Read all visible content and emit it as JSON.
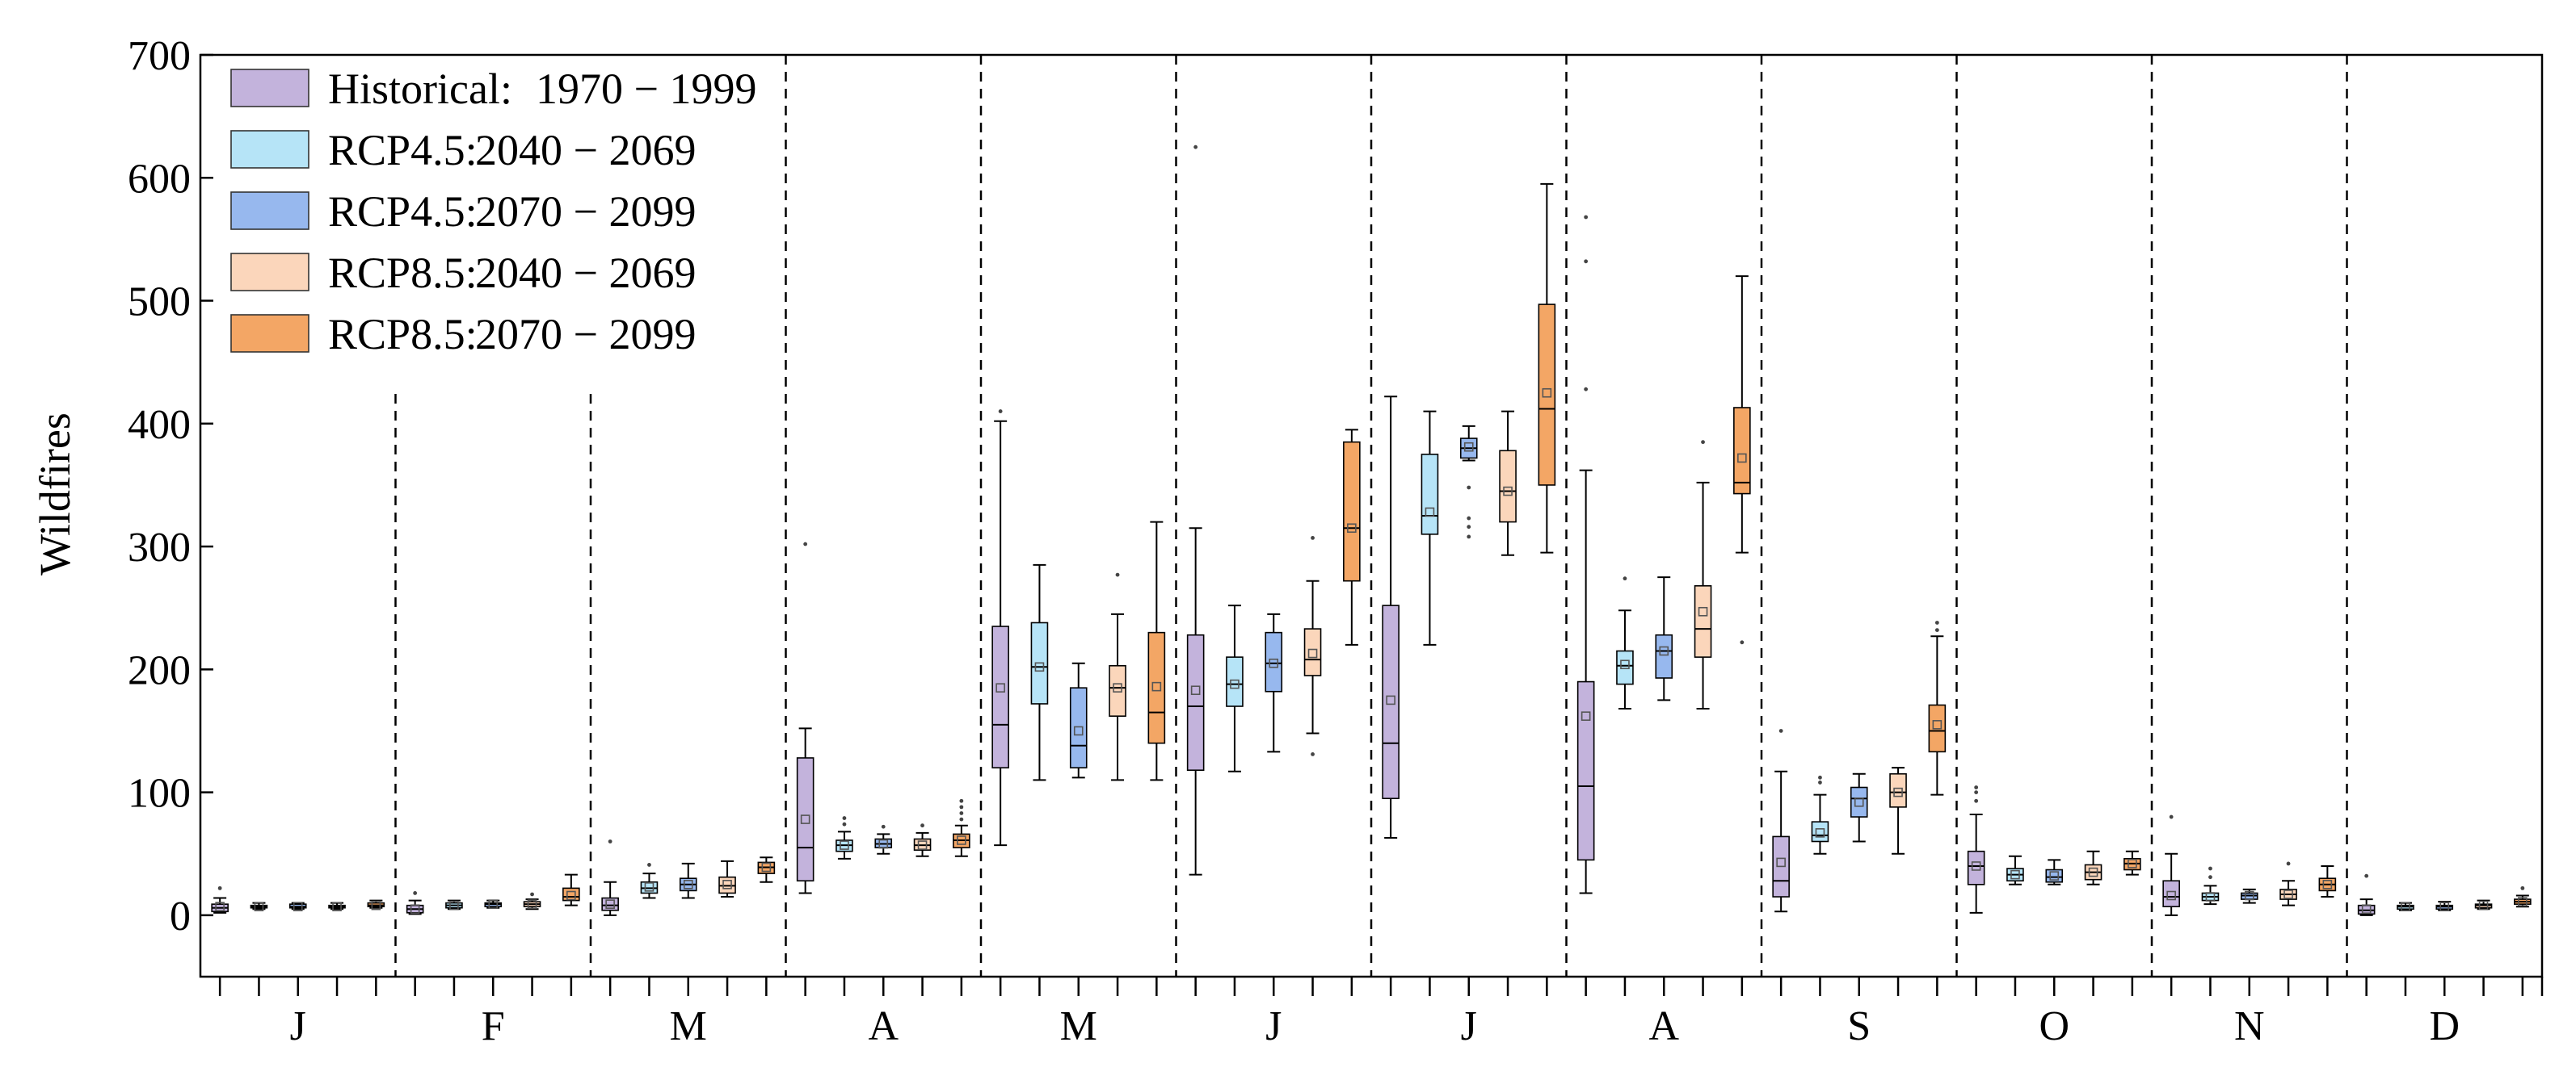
{
  "chart_data": {
    "type": "box",
    "title": "",
    "xlabel": "",
    "ylabel": "Wildfires",
    "ylim": [
      -50,
      700
    ],
    "yticks": [
      0,
      100,
      200,
      300,
      400,
      500,
      600,
      700
    ],
    "grid": false,
    "legend_placement": "top-left",
    "categories": [
      "J",
      "F",
      "M",
      "A",
      "M",
      "J",
      "J",
      "A",
      "S",
      "O",
      "N",
      "D"
    ],
    "series": [
      {
        "name": "Historical:",
        "period": "1970 − 1999",
        "color": "#c3b3dc"
      },
      {
        "name": "RCP4.5:",
        "period": "2040 − 2069",
        "color": "#b6e4f7"
      },
      {
        "name": "RCP4.5:",
        "period": "2070 − 2099",
        "color": "#97b8ee"
      },
      {
        "name": "RCP8.5:",
        "period": "2040 − 2069",
        "color": "#fbd6bb"
      },
      {
        "name": "RCP8.5:",
        "period": "2070 − 2099",
        "color": "#f3a665"
      }
    ],
    "boxes": [
      [
        {
          "min": 2,
          "q1": 3,
          "median": 6,
          "q3": 9,
          "max": 14,
          "mean": 7,
          "outliers": [
            22
          ]
        },
        {
          "min": 5,
          "q1": 6,
          "median": 7,
          "q3": 8,
          "max": 10,
          "mean": 7,
          "outliers": []
        },
        {
          "min": 5,
          "q1": 6,
          "median": 7,
          "q3": 9,
          "max": 10,
          "mean": 7,
          "outliers": []
        },
        {
          "min": 5,
          "q1": 6,
          "median": 7,
          "q3": 8,
          "max": 10,
          "mean": 7,
          "outliers": []
        },
        {
          "min": 6,
          "q1": 7,
          "median": 8,
          "q3": 10,
          "max": 12,
          "mean": 8,
          "outliers": []
        }
      ],
      [
        {
          "min": 1,
          "q1": 2,
          "median": 5,
          "q3": 8,
          "max": 12,
          "mean": 5,
          "outliers": [
            18
          ]
        },
        {
          "min": 5,
          "q1": 6,
          "median": 8,
          "q3": 10,
          "max": 12,
          "mean": 8,
          "outliers": []
        },
        {
          "min": 6,
          "q1": 7,
          "median": 9,
          "q3": 10,
          "max": 12,
          "mean": 9,
          "outliers": []
        },
        {
          "min": 5,
          "q1": 7,
          "median": 9,
          "q3": 11,
          "max": 13,
          "mean": 9,
          "outliers": [
            17
          ]
        },
        {
          "min": 8,
          "q1": 12,
          "median": 15,
          "q3": 22,
          "max": 33,
          "mean": 16,
          "outliers": []
        }
      ],
      [
        {
          "min": 0,
          "q1": 4,
          "median": 8,
          "q3": 14,
          "max": 27,
          "mean": 9,
          "outliers": [
            60
          ]
        },
        {
          "min": 14,
          "q1": 18,
          "median": 22,
          "q3": 27,
          "max": 34,
          "mean": 23,
          "outliers": [
            41
          ]
        },
        {
          "min": 14,
          "q1": 20,
          "median": 25,
          "q3": 30,
          "max": 42,
          "mean": 25,
          "outliers": []
        },
        {
          "min": 15,
          "q1": 18,
          "median": 24,
          "q3": 31,
          "max": 44,
          "mean": 25,
          "outliers": []
        },
        {
          "min": 27,
          "q1": 34,
          "median": 39,
          "q3": 43,
          "max": 47,
          "mean": 39,
          "outliers": []
        }
      ],
      [
        {
          "min": 18,
          "q1": 28,
          "median": 55,
          "q3": 128,
          "max": 152,
          "mean": 78,
          "outliers": [
            302
          ]
        },
        {
          "min": 46,
          "q1": 52,
          "median": 57,
          "q3": 61,
          "max": 68,
          "mean": 57,
          "outliers": [
            74,
            79
          ]
        },
        {
          "min": 50,
          "q1": 55,
          "median": 58,
          "q3": 62,
          "max": 66,
          "mean": 58,
          "outliers": [
            72
          ]
        },
        {
          "min": 48,
          "q1": 53,
          "median": 57,
          "q3": 62,
          "max": 67,
          "mean": 57,
          "outliers": [
            73
          ]
        },
        {
          "min": 48,
          "q1": 55,
          "median": 61,
          "q3": 66,
          "max": 73,
          "mean": 61,
          "outliers": [
            78,
            83,
            88,
            93
          ]
        }
      ],
      [
        {
          "min": 57,
          "q1": 120,
          "median": 155,
          "q3": 235,
          "max": 402,
          "mean": 185,
          "outliers": [
            410
          ]
        },
        {
          "min": 110,
          "q1": 172,
          "median": 202,
          "q3": 238,
          "max": 285,
          "mean": 202,
          "outliers": []
        },
        {
          "min": 112,
          "q1": 120,
          "median": 138,
          "q3": 185,
          "max": 205,
          "mean": 150,
          "outliers": []
        },
        {
          "min": 110,
          "q1": 162,
          "median": 185,
          "q3": 203,
          "max": 245,
          "mean": 185,
          "outliers": [
            277
          ]
        },
        {
          "min": 110,
          "q1": 140,
          "median": 165,
          "q3": 230,
          "max": 320,
          "mean": 186,
          "outliers": []
        }
      ],
      [
        {
          "min": 33,
          "q1": 118,
          "median": 170,
          "q3": 228,
          "max": 315,
          "mean": 183,
          "outliers": [
            625
          ]
        },
        {
          "min": 117,
          "q1": 170,
          "median": 188,
          "q3": 210,
          "max": 252,
          "mean": 188,
          "outliers": []
        },
        {
          "min": 133,
          "q1": 182,
          "median": 205,
          "q3": 230,
          "max": 245,
          "mean": 205,
          "outliers": []
        },
        {
          "min": 148,
          "q1": 195,
          "median": 208,
          "q3": 233,
          "max": 272,
          "mean": 213,
          "outliers": [
            131,
            307
          ]
        },
        {
          "min": 220,
          "q1": 272,
          "median": 315,
          "q3": 385,
          "max": 395,
          "mean": 315,
          "outliers": []
        }
      ],
      [
        {
          "min": 63,
          "q1": 95,
          "median": 140,
          "q3": 252,
          "max": 422,
          "mean": 175,
          "outliers": []
        },
        {
          "min": 220,
          "q1": 310,
          "median": 325,
          "q3": 375,
          "max": 410,
          "mean": 328,
          "outliers": []
        },
        {
          "min": 370,
          "q1": 372,
          "median": 380,
          "q3": 388,
          "max": 398,
          "mean": 381,
          "outliers": [
            308,
            316,
            323,
            348
          ]
        },
        {
          "min": 293,
          "q1": 320,
          "median": 345,
          "q3": 378,
          "max": 410,
          "mean": 345,
          "outliers": []
        },
        {
          "min": 295,
          "q1": 350,
          "median": 412,
          "q3": 497,
          "max": 595,
          "mean": 425,
          "outliers": []
        }
      ],
      [
        {
          "min": 18,
          "q1": 45,
          "median": 105,
          "q3": 190,
          "max": 362,
          "mean": 162,
          "outliers": [
            428,
            532,
            568
          ]
        },
        {
          "min": 168,
          "q1": 188,
          "median": 203,
          "q3": 215,
          "max": 248,
          "mean": 204,
          "outliers": [
            274
          ]
        },
        {
          "min": 175,
          "q1": 193,
          "median": 215,
          "q3": 228,
          "max": 275,
          "mean": 215,
          "outliers": []
        },
        {
          "min": 168,
          "q1": 210,
          "median": 233,
          "q3": 268,
          "max": 352,
          "mean": 247,
          "outliers": [
            385
          ]
        },
        {
          "min": 295,
          "q1": 343,
          "median": 352,
          "q3": 413,
          "max": 520,
          "mean": 372,
          "outliers": [
            222
          ]
        }
      ],
      [
        {
          "min": 3,
          "q1": 15,
          "median": 28,
          "q3": 64,
          "max": 117,
          "mean": 43,
          "outliers": [
            150
          ]
        },
        {
          "min": 50,
          "q1": 60,
          "median": 65,
          "q3": 76,
          "max": 98,
          "mean": 67,
          "outliers": [
            108,
            112
          ]
        },
        {
          "min": 60,
          "q1": 80,
          "median": 95,
          "q3": 104,
          "max": 115,
          "mean": 92,
          "outliers": []
        },
        {
          "min": 50,
          "q1": 88,
          "median": 100,
          "q3": 115,
          "max": 120,
          "mean": 100,
          "outliers": []
        },
        {
          "min": 98,
          "q1": 133,
          "median": 150,
          "q3": 171,
          "max": 227,
          "mean": 155,
          "outliers": [
            232,
            238
          ]
        }
      ],
      [
        {
          "min": 2,
          "q1": 25,
          "median": 40,
          "q3": 52,
          "max": 82,
          "mean": 40,
          "outliers": [
            93,
            100,
            104
          ]
        },
        {
          "min": 25,
          "q1": 28,
          "median": 33,
          "q3": 38,
          "max": 48,
          "mean": 33,
          "outliers": []
        },
        {
          "min": 25,
          "q1": 27,
          "median": 31,
          "q3": 37,
          "max": 45,
          "mean": 32,
          "outliers": []
        },
        {
          "min": 25,
          "q1": 29,
          "median": 35,
          "q3": 41,
          "max": 52,
          "mean": 35,
          "outliers": []
        },
        {
          "min": 33,
          "q1": 37,
          "median": 42,
          "q3": 46,
          "max": 52,
          "mean": 42,
          "outliers": []
        }
      ],
      [
        {
          "min": 0,
          "q1": 7,
          "median": 15,
          "q3": 28,
          "max": 50,
          "mean": 16,
          "outliers": [
            80
          ]
        },
        {
          "min": 9,
          "q1": 12,
          "median": 15,
          "q3": 18,
          "max": 24,
          "mean": 15,
          "outliers": [
            31,
            38
          ]
        },
        {
          "min": 10,
          "q1": 13,
          "median": 16,
          "q3": 18,
          "max": 21,
          "mean": 16,
          "outliers": []
        },
        {
          "min": 8,
          "q1": 13,
          "median": 17,
          "q3": 21,
          "max": 28,
          "mean": 17,
          "outliers": [
            42
          ]
        },
        {
          "min": 15,
          "q1": 20,
          "median": 25,
          "q3": 30,
          "max": 40,
          "mean": 25,
          "outliers": []
        }
      ],
      [
        {
          "min": 0,
          "q1": 1,
          "median": 4,
          "q3": 8,
          "max": 13,
          "mean": 5,
          "outliers": [
            32
          ]
        },
        {
          "min": 4,
          "q1": 5,
          "median": 7,
          "q3": 8,
          "max": 10,
          "mean": 7,
          "outliers": []
        },
        {
          "min": 4,
          "q1": 5,
          "median": 7,
          "q3": 8,
          "max": 11,
          "mean": 7,
          "outliers": []
        },
        {
          "min": 5,
          "q1": 6,
          "median": 8,
          "q3": 9,
          "max": 12,
          "mean": 8,
          "outliers": []
        },
        {
          "min": 7,
          "q1": 9,
          "median": 11,
          "q3": 13,
          "max": 16,
          "mean": 11,
          "outliers": [
            22
          ]
        }
      ]
    ]
  }
}
